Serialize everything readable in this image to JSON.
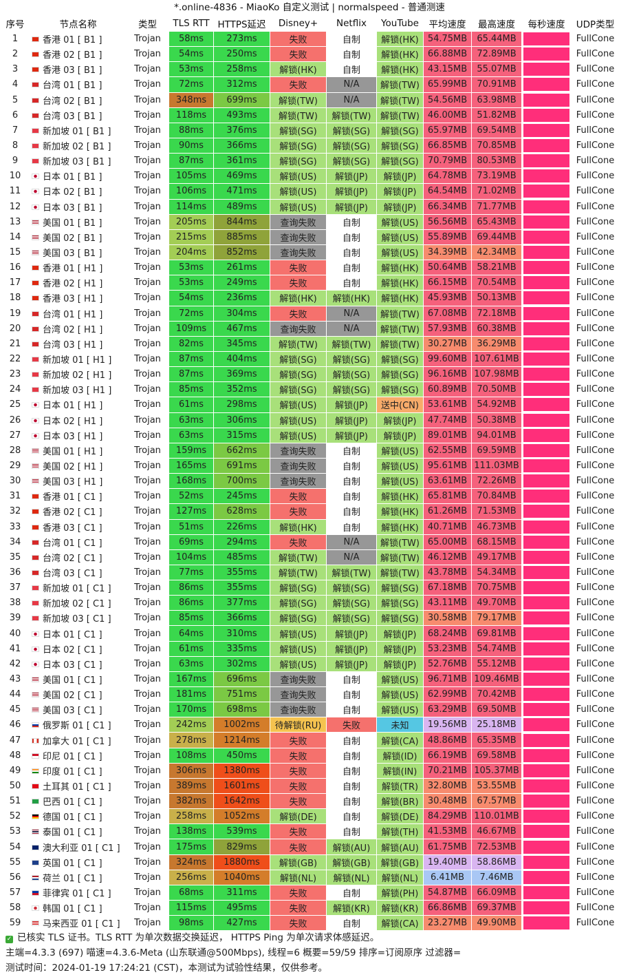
{
  "title": "*.online-4836 - MiaoKo 自定义测试 | normalspeed - 普通测速",
  "columns": [
    "序号",
    "节点名称",
    "类型",
    "TLS RTT",
    "HTTPS延迟",
    "Disney+",
    "Netflix",
    "YouTube",
    "平均速度",
    "最高速度",
    "每秒速度",
    "UDP类型"
  ],
  "rows": [
    [
      "1",
      "hk",
      "香港 01 [ B1 ]",
      "Trojan",
      "58ms",
      "273ms",
      "失败",
      "自制",
      "解锁(HK)",
      "54.75MB",
      "65.44MB",
      "FullCone"
    ],
    [
      "2",
      "hk",
      "香港 02 [ B1 ]",
      "Trojan",
      "54ms",
      "250ms",
      "失败",
      "自制",
      "解锁(HK)",
      "66.88MB",
      "72.89MB",
      "FullCone"
    ],
    [
      "3",
      "hk",
      "香港 03 [ B1 ]",
      "Trojan",
      "53ms",
      "258ms",
      "解锁(HK)",
      "自制",
      "解锁(HK)",
      "43.15MB",
      "55.07MB",
      "FullCone"
    ],
    [
      "4",
      "tw",
      "台湾 01 [ B1 ]",
      "Trojan",
      "72ms",
      "312ms",
      "失败",
      "N/A",
      "解锁(TW)",
      "65.99MB",
      "70.91MB",
      "FullCone"
    ],
    [
      "5",
      "tw",
      "台湾 02 [ B1 ]",
      "Trojan",
      "348ms",
      "699ms",
      "解锁(TW)",
      "N/A",
      "解锁(TW)",
      "54.56MB",
      "63.98MB",
      "FullCone"
    ],
    [
      "6",
      "tw",
      "台湾 03 [ B1 ]",
      "Trojan",
      "118ms",
      "493ms",
      "解锁(TW)",
      "解锁(TW)",
      "解锁(TW)",
      "46.00MB",
      "51.82MB",
      "FullCone"
    ],
    [
      "7",
      "sg",
      "新加坡 01 [ B1 ]",
      "Trojan",
      "88ms",
      "376ms",
      "解锁(SG)",
      "解锁(SG)",
      "解锁(SG)",
      "65.97MB",
      "69.54MB",
      "FullCone"
    ],
    [
      "8",
      "sg",
      "新加坡 02 [ B1 ]",
      "Trojan",
      "90ms",
      "366ms",
      "解锁(SG)",
      "解锁(SG)",
      "解锁(SG)",
      "66.85MB",
      "70.85MB",
      "FullCone"
    ],
    [
      "9",
      "sg",
      "新加坡 03 [ B1 ]",
      "Trojan",
      "87ms",
      "361ms",
      "解锁(SG)",
      "解锁(SG)",
      "解锁(SG)",
      "70.79MB",
      "80.53MB",
      "FullCone"
    ],
    [
      "10",
      "jp",
      "日本 01 [ B1 ]",
      "Trojan",
      "105ms",
      "469ms",
      "解锁(US)",
      "解锁(JP)",
      "解锁(JP)",
      "64.78MB",
      "73.19MB",
      "FullCone"
    ],
    [
      "11",
      "jp",
      "日本 02 [ B1 ]",
      "Trojan",
      "106ms",
      "471ms",
      "解锁(US)",
      "解锁(JP)",
      "解锁(JP)",
      "64.54MB",
      "71.02MB",
      "FullCone"
    ],
    [
      "12",
      "jp",
      "日本 03 [ B1 ]",
      "Trojan",
      "114ms",
      "489ms",
      "解锁(US)",
      "解锁(JP)",
      "解锁(JP)",
      "66.34MB",
      "71.77MB",
      "FullCone"
    ],
    [
      "13",
      "us",
      "美国 01 [ B1 ]",
      "Trojan",
      "205ms",
      "844ms",
      "查询失败",
      "自制",
      "解锁(US)",
      "56.56MB",
      "65.43MB",
      "FullCone"
    ],
    [
      "14",
      "us",
      "美国 02 [ B1 ]",
      "Trojan",
      "215ms",
      "885ms",
      "查询失败",
      "自制",
      "解锁(US)",
      "55.89MB",
      "69.44MB",
      "FullCone"
    ],
    [
      "15",
      "us",
      "美国 03 [ B1 ]",
      "Trojan",
      "204ms",
      "852ms",
      "查询失败",
      "自制",
      "解锁(US)",
      "34.39MB",
      "42.34MB",
      "FullCone"
    ],
    [
      "16",
      "hk",
      "香港 01 [ H1 ]",
      "Trojan",
      "53ms",
      "261ms",
      "失败",
      "自制",
      "解锁(HK)",
      "50.64MB",
      "58.21MB",
      "FullCone"
    ],
    [
      "17",
      "hk",
      "香港 02 [ H1 ]",
      "Trojan",
      "53ms",
      "249ms",
      "失败",
      "自制",
      "解锁(HK)",
      "66.15MB",
      "70.54MB",
      "FullCone"
    ],
    [
      "18",
      "hk",
      "香港 03 [ H1 ]",
      "Trojan",
      "54ms",
      "236ms",
      "解锁(HK)",
      "解锁(HK)",
      "解锁(HK)",
      "45.93MB",
      "50.13MB",
      "FullCone"
    ],
    [
      "19",
      "tw",
      "台湾 01 [ H1 ]",
      "Trojan",
      "72ms",
      "304ms",
      "失败",
      "N/A",
      "解锁(TW)",
      "67.08MB",
      "72.18MB",
      "FullCone"
    ],
    [
      "20",
      "tw",
      "台湾 02 [ H1 ]",
      "Trojan",
      "109ms",
      "467ms",
      "查询失败",
      "N/A",
      "解锁(TW)",
      "57.93MB",
      "60.38MB",
      "FullCone"
    ],
    [
      "21",
      "tw",
      "台湾 03 [ H1 ]",
      "Trojan",
      "82ms",
      "345ms",
      "解锁(TW)",
      "解锁(TW)",
      "解锁(TW)",
      "30.27MB",
      "36.29MB",
      "FullCone"
    ],
    [
      "22",
      "sg",
      "新加坡 01 [ H1 ]",
      "Trojan",
      "87ms",
      "404ms",
      "解锁(SG)",
      "解锁(SG)",
      "解锁(SG)",
      "99.60MB",
      "107.61MB",
      "FullCone"
    ],
    [
      "23",
      "sg",
      "新加坡 02 [ H1 ]",
      "Trojan",
      "87ms",
      "369ms",
      "解锁(SG)",
      "解锁(SG)",
      "解锁(SG)",
      "96.16MB",
      "107.98MB",
      "FullCone"
    ],
    [
      "24",
      "sg",
      "新加坡 03 [ H1 ]",
      "Trojan",
      "85ms",
      "352ms",
      "解锁(SG)",
      "解锁(SG)",
      "解锁(SG)",
      "60.89MB",
      "70.50MB",
      "FullCone"
    ],
    [
      "25",
      "jp",
      "日本 01 [ H1 ]",
      "Trojan",
      "61ms",
      "298ms",
      "解锁(US)",
      "解锁(JP)",
      "送中(CN)",
      "53.61MB",
      "54.92MB",
      "FullCone"
    ],
    [
      "26",
      "jp",
      "日本 02 [ H1 ]",
      "Trojan",
      "63ms",
      "306ms",
      "解锁(US)",
      "解锁(JP)",
      "解锁(JP)",
      "47.74MB",
      "50.38MB",
      "FullCone"
    ],
    [
      "27",
      "jp",
      "日本 03 [ H1 ]",
      "Trojan",
      "63ms",
      "315ms",
      "解锁(US)",
      "解锁(JP)",
      "解锁(JP)",
      "89.01MB",
      "94.01MB",
      "FullCone"
    ],
    [
      "28",
      "us",
      "美国 01 [ H1 ]",
      "Trojan",
      "159ms",
      "662ms",
      "查询失败",
      "自制",
      "解锁(US)",
      "62.55MB",
      "69.59MB",
      "FullCone"
    ],
    [
      "29",
      "us",
      "美国 02 [ H1 ]",
      "Trojan",
      "165ms",
      "691ms",
      "查询失败",
      "自制",
      "解锁(US)",
      "95.61MB",
      "111.03MB",
      "FullCone"
    ],
    [
      "30",
      "us",
      "美国 03 [ H1 ]",
      "Trojan",
      "168ms",
      "700ms",
      "查询失败",
      "自制",
      "解锁(US)",
      "63.61MB",
      "72.26MB",
      "FullCone"
    ],
    [
      "31",
      "hk",
      "香港 01 [ C1 ]",
      "Trojan",
      "52ms",
      "245ms",
      "失败",
      "自制",
      "解锁(HK)",
      "65.81MB",
      "70.84MB",
      "FullCone"
    ],
    [
      "32",
      "hk",
      "香港 02 [ C1 ]",
      "Trojan",
      "127ms",
      "628ms",
      "失败",
      "自制",
      "解锁(HK)",
      "61.26MB",
      "71.53MB",
      "FullCone"
    ],
    [
      "33",
      "hk",
      "香港 03 [ C1 ]",
      "Trojan",
      "51ms",
      "226ms",
      "解锁(HK)",
      "自制",
      "解锁(HK)",
      "40.71MB",
      "46.73MB",
      "FullCone"
    ],
    [
      "34",
      "tw",
      "台湾 01 [ C1 ]",
      "Trojan",
      "69ms",
      "294ms",
      "失败",
      "N/A",
      "解锁(TW)",
      "65.00MB",
      "68.15MB",
      "FullCone"
    ],
    [
      "35",
      "tw",
      "台湾 02 [ C1 ]",
      "Trojan",
      "104ms",
      "485ms",
      "解锁(TW)",
      "N/A",
      "解锁(TW)",
      "46.12MB",
      "49.17MB",
      "FullCone"
    ],
    [
      "36",
      "tw",
      "台湾 03 [ C1 ]",
      "Trojan",
      "77ms",
      "355ms",
      "解锁(TW)",
      "解锁(TW)",
      "解锁(TW)",
      "43.78MB",
      "54.34MB",
      "FullCone"
    ],
    [
      "37",
      "sg",
      "新加坡 01 [ C1 ]",
      "Trojan",
      "86ms",
      "355ms",
      "解锁(SG)",
      "解锁(SG)",
      "解锁(SG)",
      "67.18MB",
      "70.75MB",
      "FullCone"
    ],
    [
      "38",
      "sg",
      "新加坡 02 [ C1 ]",
      "Trojan",
      "86ms",
      "377ms",
      "解锁(SG)",
      "解锁(SG)",
      "解锁(SG)",
      "43.11MB",
      "49.70MB",
      "FullCone"
    ],
    [
      "39",
      "sg",
      "新加坡 03 [ C1 ]",
      "Trojan",
      "85ms",
      "366ms",
      "解锁(SG)",
      "解锁(SG)",
      "解锁(SG)",
      "30.58MB",
      "79.17MB",
      "FullCone"
    ],
    [
      "40",
      "jp",
      "日本 01 [ C1 ]",
      "Trojan",
      "64ms",
      "310ms",
      "解锁(US)",
      "解锁(JP)",
      "解锁(JP)",
      "68.24MB",
      "69.81MB",
      "FullCone"
    ],
    [
      "41",
      "jp",
      "日本 02 [ C1 ]",
      "Trojan",
      "61ms",
      "335ms",
      "解锁(US)",
      "解锁(JP)",
      "解锁(JP)",
      "53.23MB",
      "54.74MB",
      "FullCone"
    ],
    [
      "42",
      "jp",
      "日本 03 [ C1 ]",
      "Trojan",
      "63ms",
      "302ms",
      "解锁(US)",
      "解锁(JP)",
      "解锁(JP)",
      "52.76MB",
      "55.12MB",
      "FullCone"
    ],
    [
      "43",
      "us",
      "美国 01 [ C1 ]",
      "Trojan",
      "167ms",
      "696ms",
      "查询失败",
      "自制",
      "解锁(US)",
      "96.71MB",
      "109.46MB",
      "FullCone"
    ],
    [
      "44",
      "us",
      "美国 02 [ C1 ]",
      "Trojan",
      "181ms",
      "751ms",
      "查询失败",
      "自制",
      "解锁(US)",
      "62.99MB",
      "70.42MB",
      "FullCone"
    ],
    [
      "45",
      "us",
      "美国 03 [ C1 ]",
      "Trojan",
      "170ms",
      "698ms",
      "查询失败",
      "自制",
      "解锁(US)",
      "63.29MB",
      "69.50MB",
      "FullCone"
    ],
    [
      "46",
      "ru",
      "俄罗斯 01 [ C1 ]",
      "Trojan",
      "242ms",
      "1002ms",
      "待解锁(RU)",
      "失败",
      "未知",
      "19.56MB",
      "25.18MB",
      "FullCone"
    ],
    [
      "47",
      "ca",
      "加拿大 01 [ C1 ]",
      "Trojan",
      "278ms",
      "1214ms",
      "失败",
      "自制",
      "解锁(CA)",
      "48.86MB",
      "65.35MB",
      "FullCone"
    ],
    [
      "48",
      "id",
      "印尼 01 [ C1 ]",
      "Trojan",
      "108ms",
      "450ms",
      "失败",
      "自制",
      "解锁(ID)",
      "66.19MB",
      "69.58MB",
      "FullCone"
    ],
    [
      "49",
      "in",
      "印度 01 [ C1 ]",
      "Trojan",
      "306ms",
      "1380ms",
      "失败",
      "自制",
      "解锁(IN)",
      "70.21MB",
      "105.37MB",
      "FullCone"
    ],
    [
      "50",
      "tr",
      "土耳其 01 [ C1 ]",
      "Trojan",
      "389ms",
      "1601ms",
      "失败",
      "自制",
      "解锁(TR)",
      "32.80MB",
      "53.55MB",
      "FullCone"
    ],
    [
      "51",
      "br",
      "巴西 01 [ C1 ]",
      "Trojan",
      "382ms",
      "1642ms",
      "失败",
      "自制",
      "解锁(BR)",
      "30.48MB",
      "67.57MB",
      "FullCone"
    ],
    [
      "52",
      "de",
      "德国 01 [ C1 ]",
      "Trojan",
      "258ms",
      "1052ms",
      "解锁(DE)",
      "自制",
      "解锁(DE)",
      "84.29MB",
      "110.01MB",
      "FullCone"
    ],
    [
      "53",
      "th",
      "泰国 01 [ C1 ]",
      "Trojan",
      "138ms",
      "539ms",
      "失败",
      "自制",
      "解锁(TH)",
      "41.53MB",
      "46.67MB",
      "FullCone"
    ],
    [
      "54",
      "au",
      "澳大利亚 01 [ C1 ]",
      "Trojan",
      "175ms",
      "829ms",
      "失败",
      "解锁(AU)",
      "解锁(AU)",
      "61.75MB",
      "72.53MB",
      "FullCone"
    ],
    [
      "55",
      "gb",
      "英国 01 [ C1 ]",
      "Trojan",
      "324ms",
      "1880ms",
      "解锁(GB)",
      "解锁(GB)",
      "解锁(GB)",
      "19.40MB",
      "58.86MB",
      "FullCone"
    ],
    [
      "56",
      "nl",
      "荷兰 01 [ C1 ]",
      "Trojan",
      "256ms",
      "1040ms",
      "解锁(NL)",
      "解锁(NL)",
      "解锁(NL)",
      "6.41MB",
      "7.46MB",
      "FullCone"
    ],
    [
      "57",
      "ph",
      "菲律宾 01 [ C1 ]",
      "Trojan",
      "68ms",
      "311ms",
      "失败",
      "自制",
      "解锁(PH)",
      "54.87MB",
      "66.09MB",
      "FullCone"
    ],
    [
      "58",
      "kr",
      "韩国 01 [ C1 ]",
      "Trojan",
      "115ms",
      "495ms",
      "失败",
      "解锁(KR)",
      "解锁(KR)",
      "66.86MB",
      "69.37MB",
      "FullCone"
    ],
    [
      "59",
      "my",
      "马来西亚 01 [ C1 ]",
      "Trojan",
      "98ms",
      "427ms",
      "失败",
      "自制",
      "解锁(CA)",
      "23.27MB",
      "49.90MB",
      "FullCone"
    ]
  ],
  "footer": {
    "line1": "已核实 TLS 证书。TLS RTT 为单次数据交换延迟， HTTPS Ping 为单次请求体感延迟。",
    "line2": "主端=4.3.3 (697) 喵速=4.3.6-Meta (山东联通@500Mbps), 线程=6 概要=59/59 排序=订阅原序 过滤器=",
    "line3": "测试时间：2024-01-19 17:24:21 (CST)，本测试为试验性结果，仅供参考。"
  },
  "flag_colors": {
    "hk": "#de2910",
    "tw": "#d62828",
    "sg": "#e63946",
    "jp": "#ffffff",
    "us": "#3c5aa6",
    "ru": "#2a52be",
    "ca": "#d52b1e",
    "id": "#ce1126",
    "in": "#ff9933",
    "tr": "#e30a17",
    "br": "#229e45",
    "de": "#222222",
    "th": "#2d2a4a",
    "au": "#012169",
    "gb": "#1d3f8a",
    "nl": "#ae1c28",
    "ph": "#0038a8",
    "kr": "#ffffff",
    "my": "#cc0001"
  }
}
